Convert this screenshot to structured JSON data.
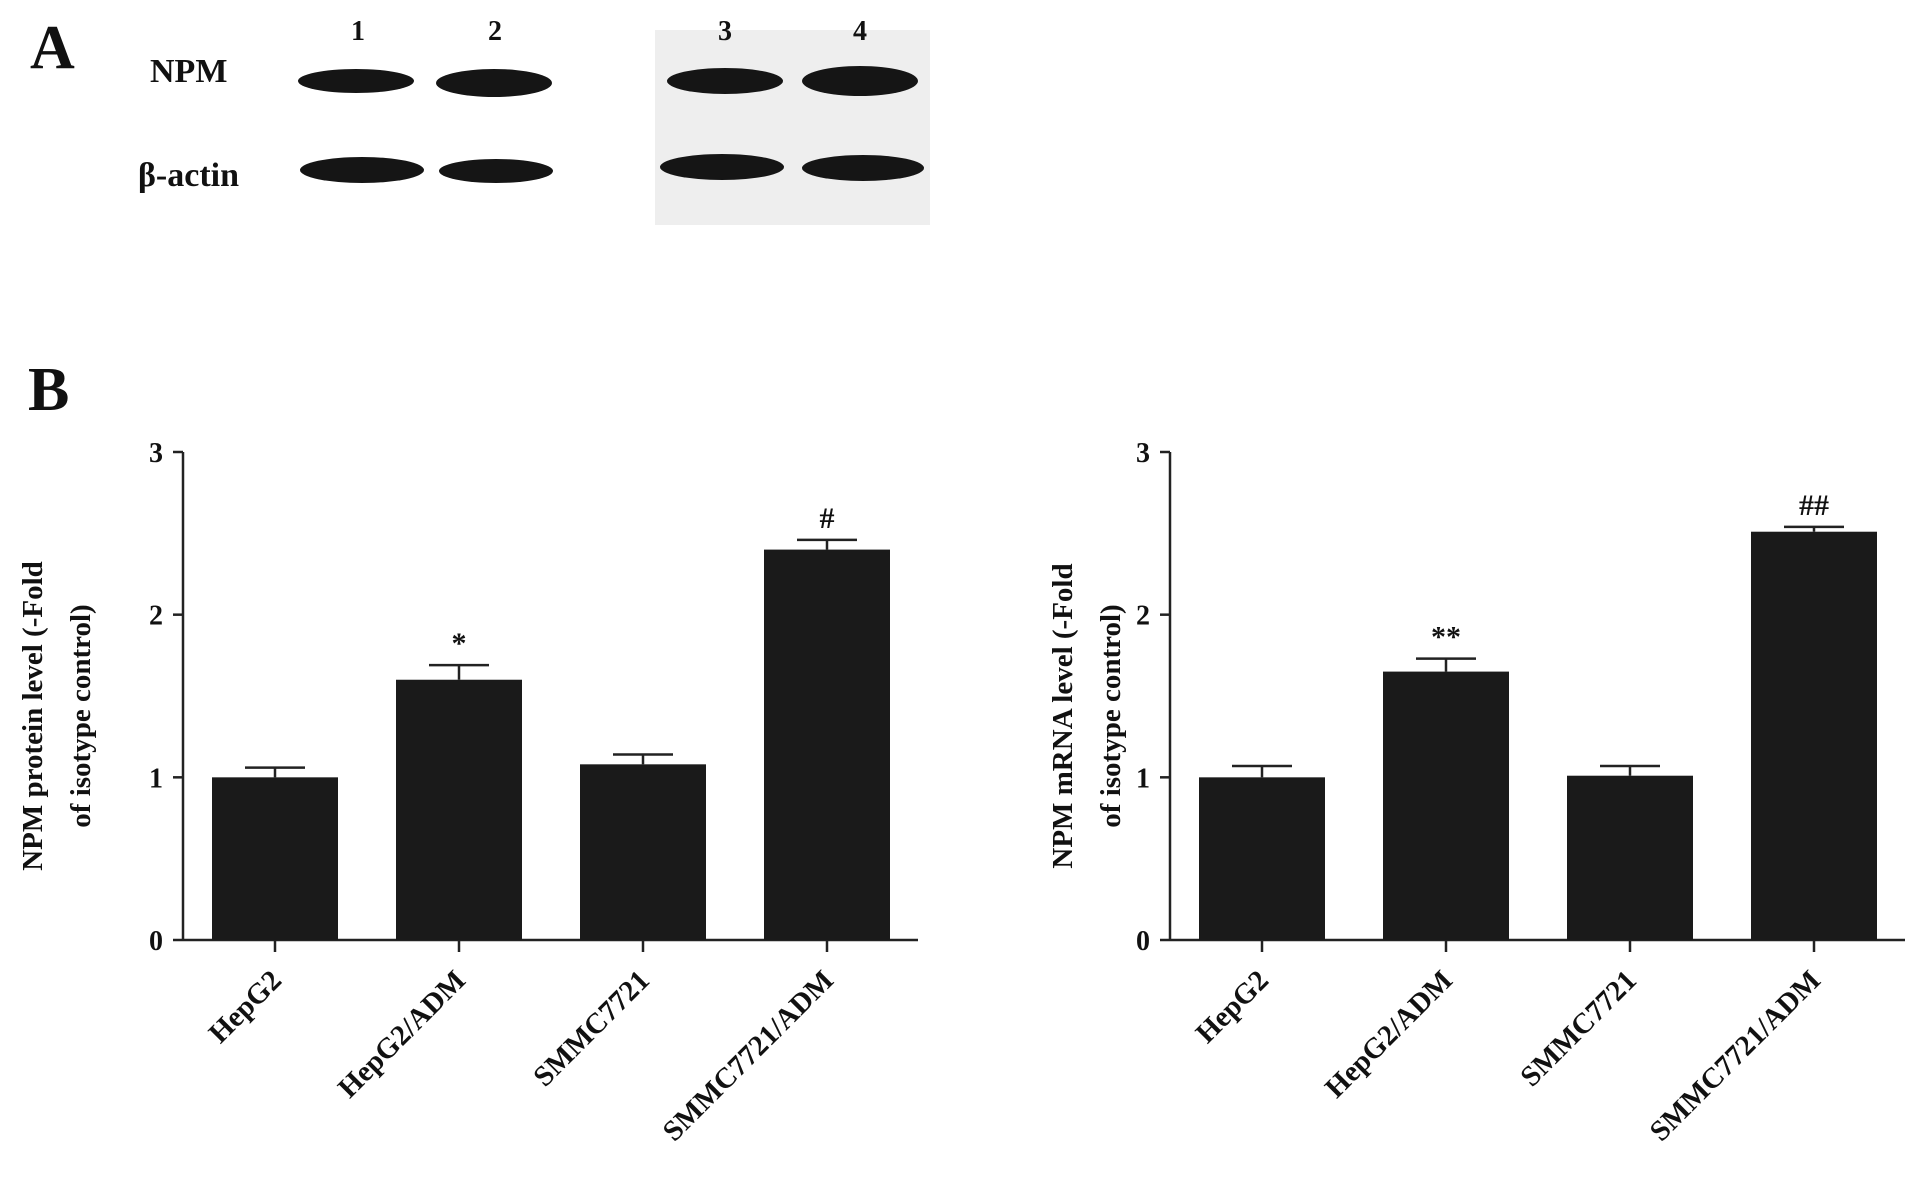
{
  "panels": {
    "a_label": "A",
    "b_label": "B"
  },
  "blot": {
    "lane_labels": [
      "1",
      "2",
      "3",
      "4"
    ],
    "row_labels": [
      "NPM",
      "β-actin"
    ]
  },
  "colors": {
    "bar": "#1a1a1a",
    "axis": "#222222",
    "blot_band": "#151515",
    "blot_bg": "#eeeeee"
  },
  "chart_data": [
    {
      "type": "bar",
      "categories": [
        "HepG2",
        "HepG2/ADM",
        "SMMC7721",
        "SMMC7721/ADM"
      ],
      "values": [
        1.0,
        1.6,
        1.08,
        2.4
      ],
      "errors": [
        0.06,
        0.09,
        0.06,
        0.06
      ],
      "annotations": [
        "",
        "*",
        "",
        "#"
      ],
      "title": "",
      "xlabel": "",
      "ylabel": "NPM protein level (-Fold of isotype control)",
      "ylabel_lines": [
        "NPM protein level (-Fold",
        "of isotype control)"
      ],
      "ylim": [
        0,
        3
      ],
      "yticks": [
        "0",
        "1",
        "2",
        "3"
      ],
      "grid": false
    },
    {
      "type": "bar",
      "categories": [
        "HepG2",
        "HepG2/ADM",
        "SMMC7721",
        "SMMC7721/ADM"
      ],
      "values": [
        1.0,
        1.65,
        1.01,
        2.51
      ],
      "errors": [
        0.07,
        0.08,
        0.06,
        0.03
      ],
      "annotations": [
        "",
        "**",
        "",
        "##"
      ],
      "title": "",
      "xlabel": "",
      "ylabel": "NPM mRNA level (-Fold of isotype control)",
      "ylabel_lines": [
        "NPM mRNA level (-Fold",
        "of isotype control)"
      ],
      "ylim": [
        0,
        3
      ],
      "yticks": [
        "0",
        "1",
        "2",
        "3"
      ],
      "grid": false
    }
  ]
}
